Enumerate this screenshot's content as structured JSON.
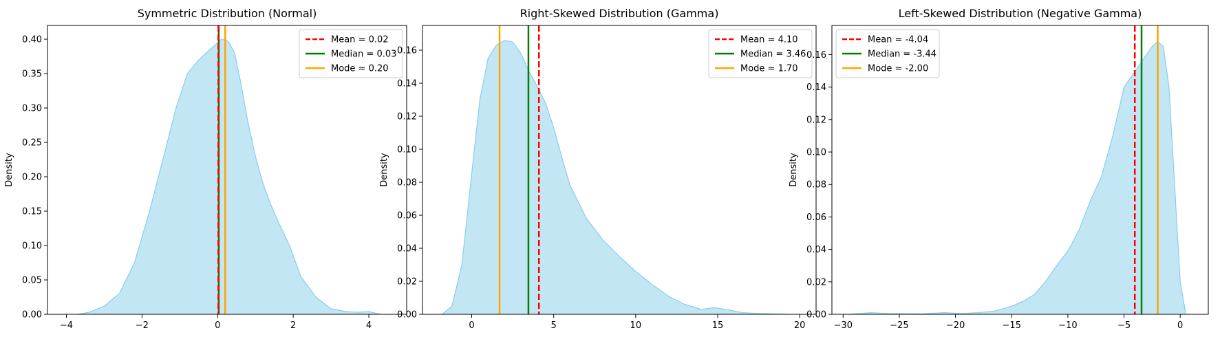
{
  "chart_data": [
    {
      "type": "area",
      "title": "Symmetric Distribution (Normal)",
      "xlabel": "",
      "ylabel": "Density",
      "xlim": [
        -4.5,
        5.0
      ],
      "ylim": [
        0,
        0.42
      ],
      "xticks": [
        -4,
        -2,
        0,
        2,
        4
      ],
      "yticks": [
        0.0,
        0.05,
        0.1,
        0.15,
        0.2,
        0.25,
        0.3,
        0.35,
        0.4
      ],
      "ytick_labels": [
        "0.00",
        "0.05",
        "0.10",
        "0.15",
        "0.20",
        "0.25",
        "0.30",
        "0.35",
        "0.40"
      ],
      "grid": false,
      "legend_position": "top-right",
      "fill_color": "#87CEEB",
      "density": {
        "x": [
          -3.7,
          -3.4,
          -3.0,
          -2.6,
          -2.2,
          -1.8,
          -1.4,
          -1.1,
          -0.8,
          -0.5,
          -0.3,
          -0.1,
          0.0,
          0.1,
          0.2,
          0.3,
          0.45,
          0.6,
          0.8,
          1.0,
          1.2,
          1.4,
          1.6,
          1.9,
          2.2,
          2.6,
          3.0,
          3.4,
          3.7,
          4.0,
          4.3
        ],
        "y": [
          0.0,
          0.003,
          0.012,
          0.03,
          0.075,
          0.15,
          0.235,
          0.3,
          0.35,
          0.37,
          0.38,
          0.39,
          0.395,
          0.4,
          0.4,
          0.395,
          0.38,
          0.34,
          0.28,
          0.23,
          0.19,
          0.16,
          0.135,
          0.1,
          0.055,
          0.025,
          0.008,
          0.004,
          0.003,
          0.004,
          0.0
        ]
      },
      "lines": [
        {
          "label": "Mean = 0.02",
          "value": 0.02,
          "color": "#ff0000",
          "dashed": true
        },
        {
          "label": "Median = 0.03",
          "value": 0.03,
          "color": "#008000",
          "dashed": false
        },
        {
          "label": "Mode ≈ 0.20",
          "value": 0.2,
          "color": "#ffa500",
          "dashed": false
        }
      ]
    },
    {
      "type": "area",
      "title": "Right-Skewed Distribution (Gamma)",
      "xlabel": "",
      "ylabel": "Density",
      "xlim": [
        -3.0,
        21.0
      ],
      "ylim": [
        0,
        0.175
      ],
      "xticks": [
        0,
        5,
        10,
        15,
        20
      ],
      "yticks": [
        0.0,
        0.02,
        0.04,
        0.06,
        0.08,
        0.1,
        0.12,
        0.14,
        0.16
      ],
      "ytick_labels": [
        "0.00",
        "0.02",
        "0.04",
        "0.06",
        "0.08",
        "0.10",
        "0.12",
        "0.14",
        "0.16"
      ],
      "grid": false,
      "legend_position": "top-right",
      "fill_color": "#87CEEB",
      "density": {
        "x": [
          -1.8,
          -1.2,
          -0.6,
          0.0,
          0.5,
          1.0,
          1.5,
          2.0,
          2.5,
          3.0,
          3.5,
          4.0,
          4.5,
          5.0,
          5.5,
          6.0,
          7.0,
          8.0,
          9.0,
          10.0,
          11.0,
          12.0,
          13.0,
          14.0,
          14.8,
          15.5,
          16.5,
          17.5,
          18.5,
          19.3
        ],
        "y": [
          0.0,
          0.005,
          0.03,
          0.085,
          0.13,
          0.155,
          0.163,
          0.166,
          0.165,
          0.158,
          0.147,
          0.138,
          0.128,
          0.113,
          0.095,
          0.078,
          0.058,
          0.045,
          0.035,
          0.026,
          0.018,
          0.011,
          0.006,
          0.003,
          0.004,
          0.003,
          0.001,
          0.0005,
          0.0002,
          0.0
        ]
      },
      "lines": [
        {
          "label": "Mean = 4.10",
          "value": 4.1,
          "color": "#ff0000",
          "dashed": true
        },
        {
          "label": "Median = 3.46",
          "value": 3.46,
          "color": "#008000",
          "dashed": false
        },
        {
          "label": "Mode ≈ 1.70",
          "value": 1.7,
          "color": "#ffa500",
          "dashed": false
        }
      ]
    },
    {
      "type": "area",
      "title": "Left-Skewed Distribution (Negative Gamma)",
      "xlabel": "",
      "ylabel": "Density",
      "xlim": [
        -31.0,
        2.5
      ],
      "ylim": [
        0,
        0.178
      ],
      "xticks": [
        -30,
        -25,
        -20,
        -15,
        -10,
        -5,
        0
      ],
      "yticks": [
        0.0,
        0.02,
        0.04,
        0.06,
        0.08,
        0.1,
        0.12,
        0.14,
        0.16
      ],
      "ytick_labels": [
        "0.00",
        "0.02",
        "0.04",
        "0.06",
        "0.08",
        "0.10",
        "0.12",
        "0.14",
        "0.16"
      ],
      "grid": false,
      "legend_position": "top-left",
      "fill_color": "#87CEEB",
      "density": {
        "x": [
          -29.5,
          -27.5,
          -26.0,
          -23.0,
          -21.0,
          -19.5,
          -18.0,
          -16.5,
          -15.0,
          -14.0,
          -13.0,
          -12.0,
          -11.0,
          -10.0,
          -9.0,
          -8.0,
          -7.0,
          -6.0,
          -5.5,
          -5.0,
          -4.5,
          -4.0,
          -3.5,
          -3.0,
          -2.5,
          -2.0,
          -1.5,
          -1.0,
          -0.5,
          0.0,
          0.5
        ],
        "y": [
          0.0,
          0.001,
          0.0005,
          0.0003,
          0.001,
          0.0005,
          0.001,
          0.002,
          0.005,
          0.008,
          0.012,
          0.02,
          0.03,
          0.039,
          0.052,
          0.07,
          0.085,
          0.11,
          0.125,
          0.14,
          0.145,
          0.15,
          0.155,
          0.16,
          0.165,
          0.168,
          0.165,
          0.14,
          0.08,
          0.02,
          0.0
        ]
      },
      "lines": [
        {
          "label": "Mean = -4.04",
          "value": -4.04,
          "color": "#ff0000",
          "dashed": true
        },
        {
          "label": "Median = -3.44",
          "value": -3.44,
          "color": "#008000",
          "dashed": false
        },
        {
          "label": "Mode ≈ -2.00",
          "value": -2.0,
          "color": "#ffa500",
          "dashed": false
        }
      ]
    }
  ]
}
